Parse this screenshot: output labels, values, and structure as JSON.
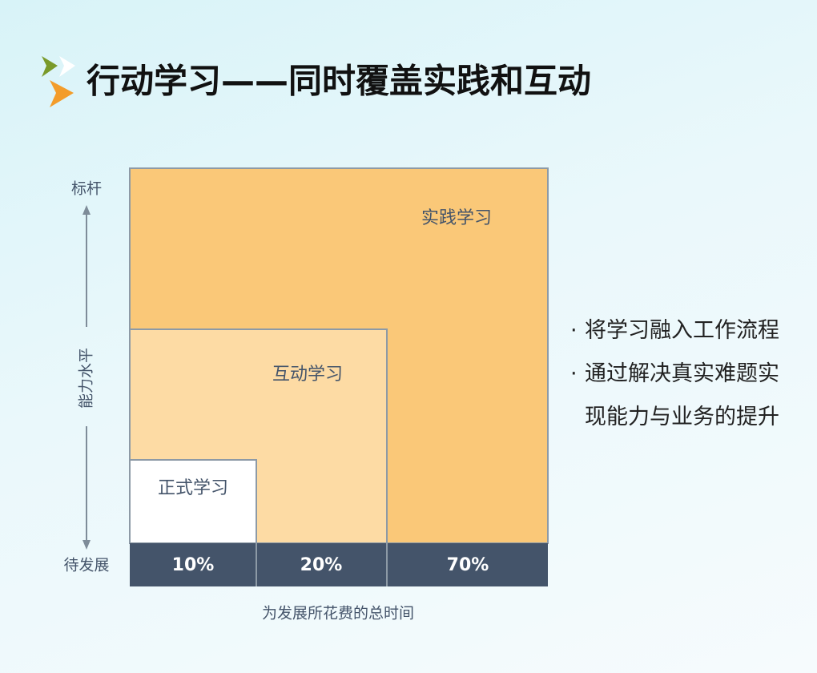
{
  "header": {
    "title": "行动学习——同时覆盖实践和互动"
  },
  "diagram": {
    "y_axis": {
      "top": "标杆",
      "label": "能力水平",
      "bottom": "待发展"
    },
    "x_axis": {
      "label": "为发展所花费的总时间"
    },
    "blocks": [
      {
        "label": "正式学习",
        "share": "10%"
      },
      {
        "label": "互动学习",
        "share": "20%"
      },
      {
        "label": "实践学习",
        "share": "70%"
      }
    ]
  },
  "bullets": [
    "将学习融入工作流程",
    "通过解决真实难题实现能力与业务的提升"
  ]
}
